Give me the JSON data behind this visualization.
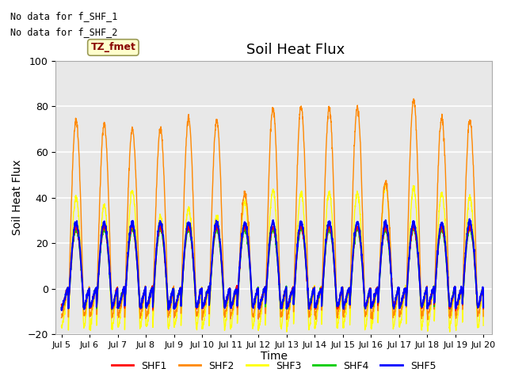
{
  "title": "Soil Heat Flux",
  "xlabel": "Time",
  "ylabel": "Soil Heat Flux",
  "ylim": [
    -20,
    100
  ],
  "yticks": [
    -20,
    0,
    20,
    40,
    60,
    80,
    100
  ],
  "xtick_labels": [
    "Jul 5",
    "Jul 6",
    "Jul 7",
    "Jul 8",
    "Jul 9",
    "Jul 10",
    "Jul 11",
    "Jul 12",
    "Jul 13",
    "Jul 14",
    "Jul 15",
    "Jul 16",
    "Jul 17",
    "Jul 18",
    "Jul 19",
    "Jul 20"
  ],
  "xtick_positions": [
    0,
    1,
    2,
    3,
    4,
    5,
    6,
    7,
    8,
    9,
    10,
    11,
    12,
    13,
    14,
    15
  ],
  "series_colors": {
    "SHF1": "#ff0000",
    "SHF2": "#ff8800",
    "SHF3": "#ffff00",
    "SHF4": "#00cc00",
    "SHF5": "#0000ff"
  },
  "annotation_text1": "No data for f_SHF_1",
  "annotation_text2": "No data for f_SHF_2",
  "legend_label": "TZ_fmet",
  "plot_bg_color": "#e8e8e8",
  "grid_color": "#ffffff",
  "title_fontsize": 13,
  "axis_label_fontsize": 10,
  "shf2_peaks": [
    74,
    72,
    70,
    70,
    75,
    74,
    42,
    79,
    80,
    79,
    80,
    47,
    83,
    75,
    74
  ],
  "shf3_peaks": [
    40,
    36,
    43,
    32,
    35,
    32,
    38,
    43,
    42,
    42,
    42,
    46,
    44,
    42,
    40
  ],
  "shf1_peak": 27,
  "shf4_peak": 26,
  "shf5_peak": 29,
  "shf2_min": -12,
  "shf3_min": -17,
  "shf145_min": -8,
  "dawn_hour": 6,
  "dusk_hour": 19
}
